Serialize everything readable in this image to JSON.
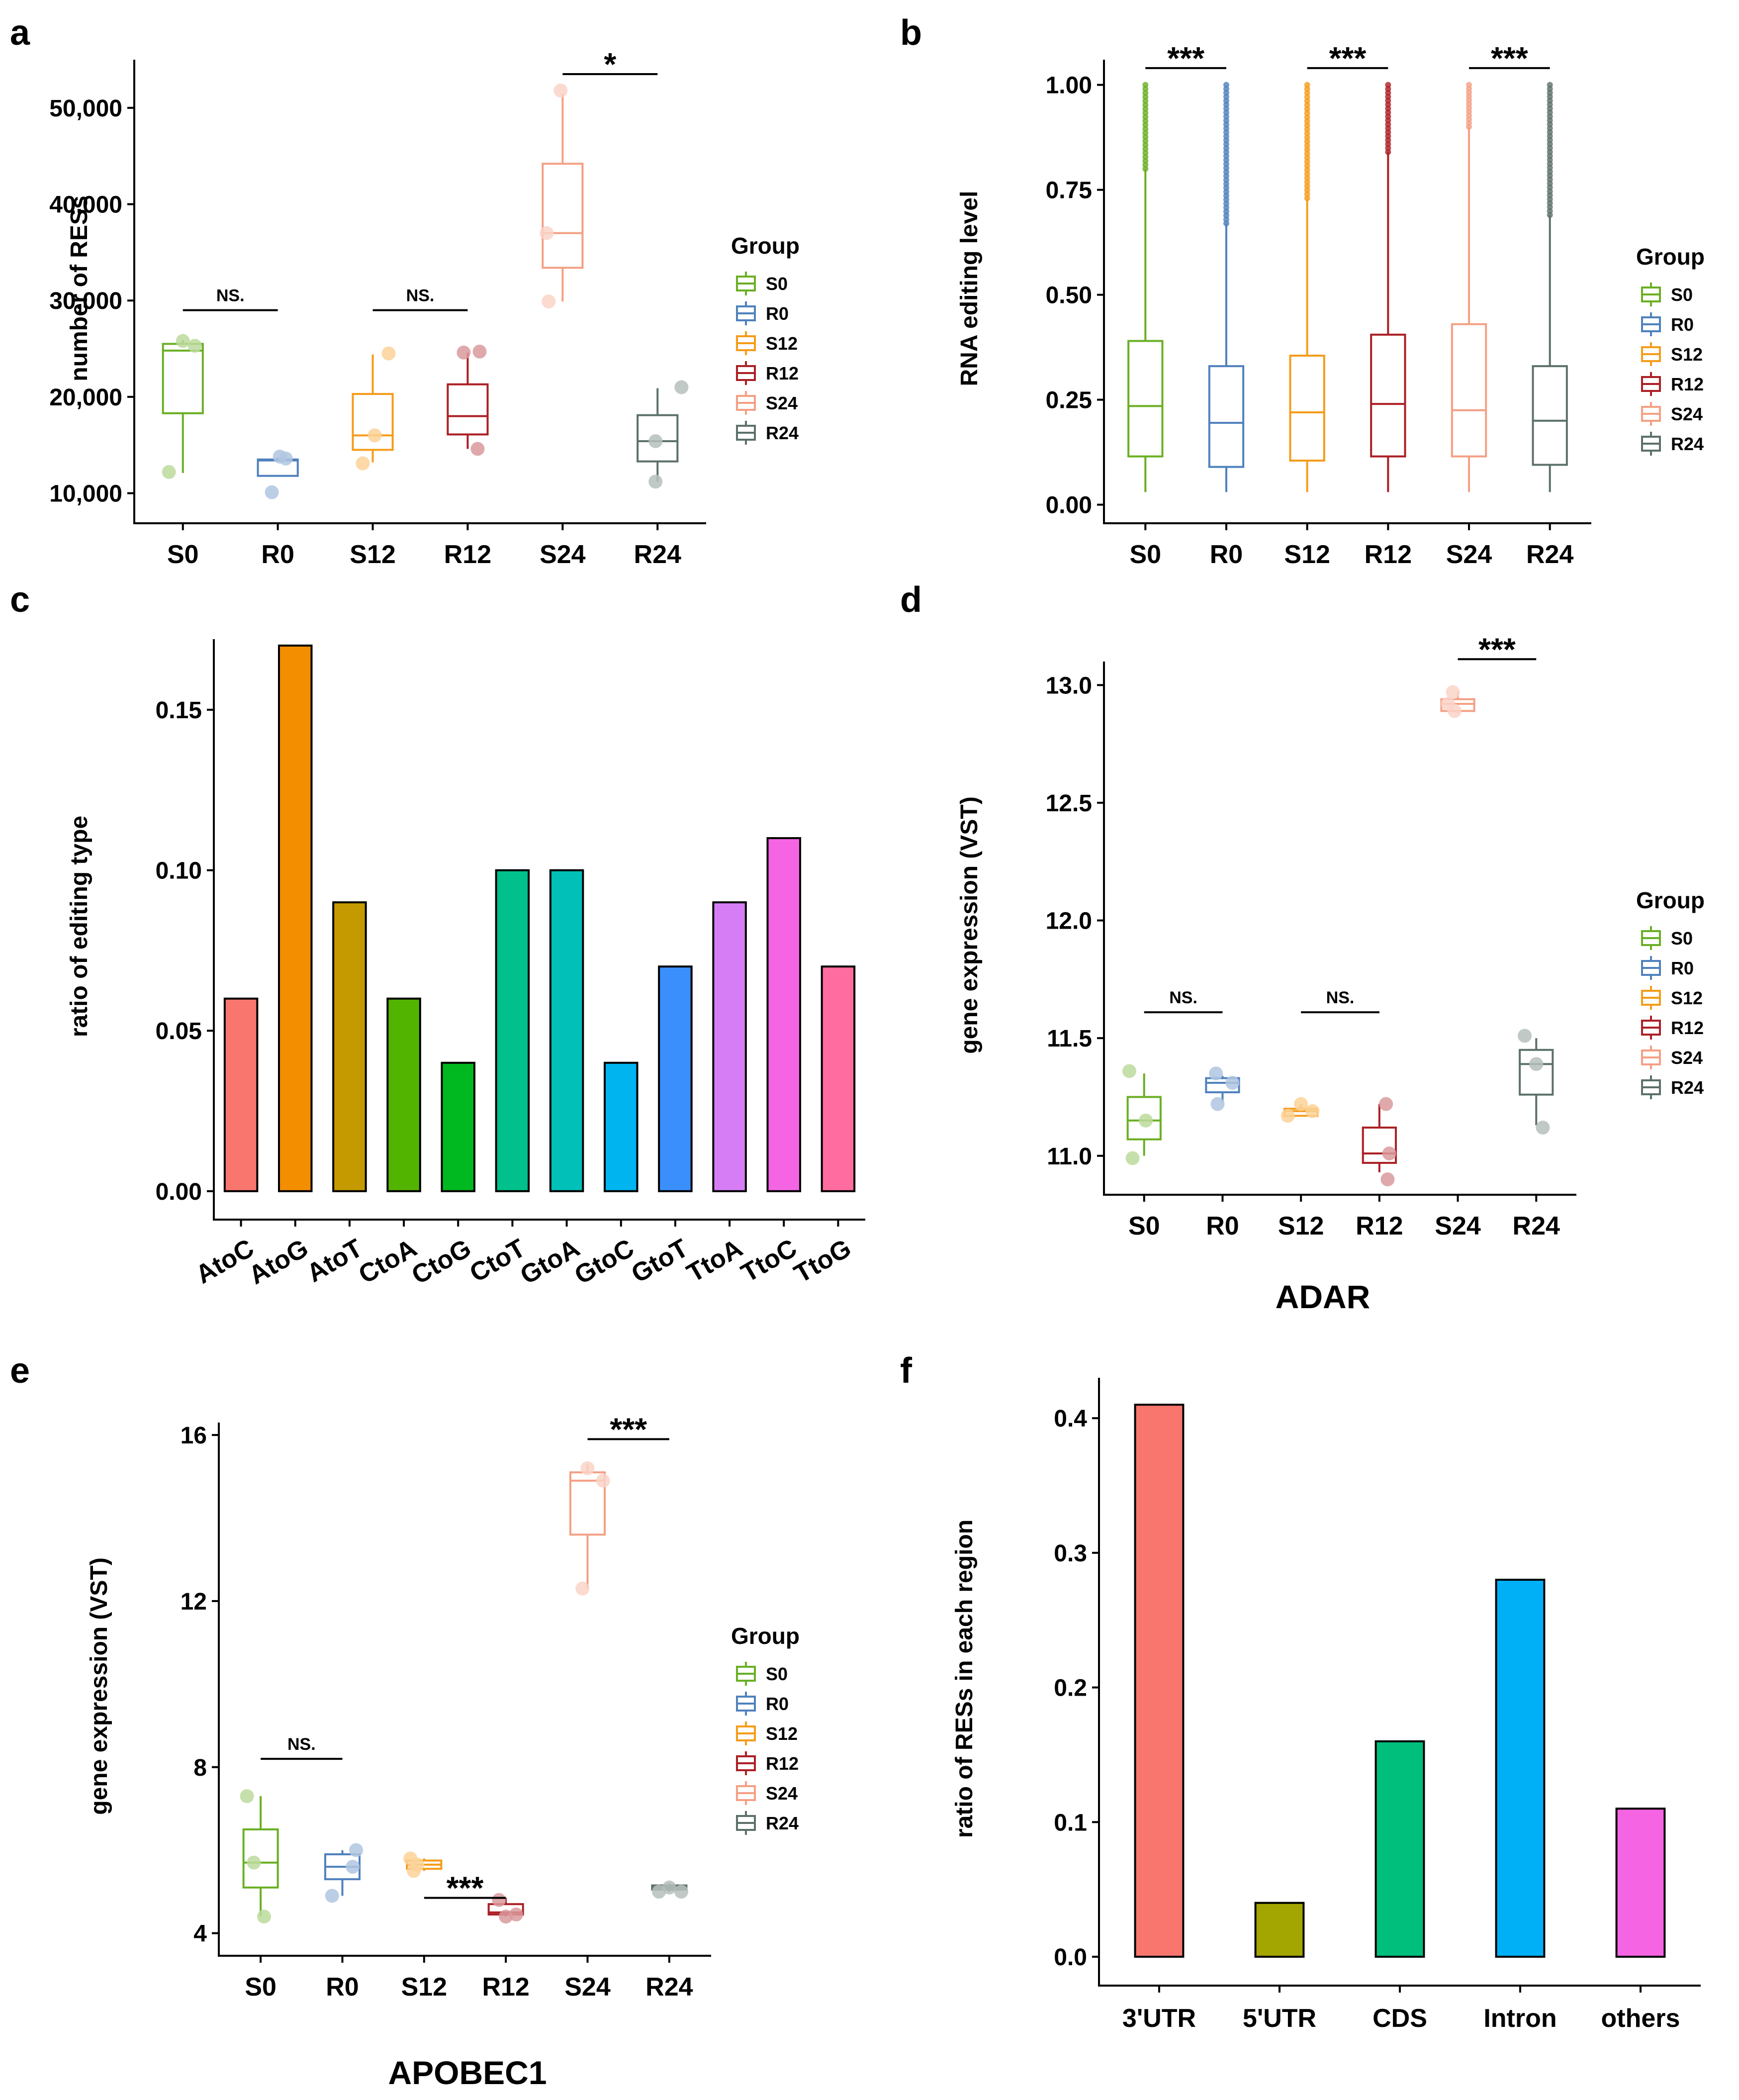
{
  "colors": {
    "S0": "#6aaf23",
    "R0": "#4f81bd",
    "S12": "#f59c1a",
    "R12": "#ab1f25",
    "S24": "#f4a084",
    "R24": "#5c706b"
  },
  "legend": {
    "title": "Group",
    "items": [
      "S0",
      "R0",
      "S12",
      "R12",
      "S24",
      "R24"
    ]
  },
  "chart_data": [
    {
      "id": "a",
      "panel": "a",
      "type": "box",
      "ylabel": "number of RESs",
      "categories": [
        "S0",
        "R0",
        "S12",
        "R12",
        "S24",
        "R24"
      ],
      "ylim": [
        7500,
        55000
      ],
      "yticks": [
        10000,
        20000,
        30000,
        40000,
        50000
      ],
      "ytick_labels": [
        "10,000",
        "20,000",
        "30,000",
        "40,000",
        "50,000"
      ],
      "boxes": [
        {
          "group": "S0",
          "min": 12100,
          "q1": 18300,
          "median": 24800,
          "q3": 25500,
          "max": 25900
        },
        {
          "group": "R0",
          "min": 11800,
          "q1": 11800,
          "median": 13400,
          "q3": 13500,
          "max": 13700
        },
        {
          "group": "S12",
          "min": 13200,
          "q1": 14500,
          "median": 16000,
          "q3": 20300,
          "max": 24400
        },
        {
          "group": "R12",
          "min": 14600,
          "q1": 16100,
          "median": 18000,
          "q3": 21300,
          "max": 24600
        },
        {
          "group": "S24",
          "min": 29900,
          "q1": 33400,
          "median": 37000,
          "q3": 44200,
          "max": 51500
        },
        {
          "group": "R24",
          "min": 11200,
          "q1": 13300,
          "median": 15400,
          "q3": 18100,
          "max": 20900
        }
      ],
      "points": [
        {
          "group": "S0",
          "values": [
            12200,
            25800,
            25300
          ],
          "offsets": [
            -0.35,
            0.0,
            0.3
          ]
        },
        {
          "group": "R0",
          "values": [
            10100,
            13600,
            13800
          ],
          "offsets": [
            -0.15,
            0.2,
            0.05
          ]
        },
        {
          "group": "S12",
          "values": [
            13100,
            16000,
            24500
          ],
          "offsets": [
            -0.25,
            0.05,
            0.4
          ]
        },
        {
          "group": "R12",
          "values": [
            14600,
            24600,
            24700
          ],
          "offsets": [
            0.25,
            -0.1,
            0.3
          ]
        },
        {
          "group": "S24",
          "values": [
            29900,
            37000,
            51800
          ],
          "offsets": [
            -0.35,
            -0.4,
            -0.05
          ]
        },
        {
          "group": "R24",
          "values": [
            11200,
            15400,
            21000
          ],
          "offsets": [
            -0.05,
            -0.05,
            0.6
          ]
        }
      ],
      "significance": [
        {
          "from": "S0",
          "to": "R0",
          "label": "NS.",
          "y": 29000
        },
        {
          "from": "S12",
          "to": "R12",
          "label": "NS.",
          "y": 29000
        },
        {
          "from": "S24",
          "to": "R24",
          "label": "*",
          "y": 53500
        }
      ]
    },
    {
      "id": "b",
      "panel": "b",
      "type": "box",
      "ylabel": "RNA editing level",
      "categories": [
        "S0",
        "R0",
        "S12",
        "R12",
        "S24",
        "R24"
      ],
      "ylim": [
        -0.03,
        1.06
      ],
      "yticks": [
        0.0,
        0.25,
        0.5,
        0.75,
        1.0
      ],
      "ytick_labels": [
        "0.00",
        "0.25",
        "0.50",
        "0.75",
        "1.00"
      ],
      "boxes": [
        {
          "group": "S0",
          "min": 0.03,
          "q1": 0.115,
          "median": 0.235,
          "q3": 0.39,
          "max": 0.8
        },
        {
          "group": "R0",
          "min": 0.03,
          "q1": 0.09,
          "median": 0.195,
          "q3": 0.33,
          "max": 0.67
        },
        {
          "group": "S12",
          "min": 0.03,
          "q1": 0.105,
          "median": 0.22,
          "q3": 0.355,
          "max": 0.73
        },
        {
          "group": "R12",
          "min": 0.03,
          "q1": 0.115,
          "median": 0.24,
          "q3": 0.405,
          "max": 0.84
        },
        {
          "group": "S24",
          "min": 0.03,
          "q1": 0.115,
          "median": 0.225,
          "q3": 0.43,
          "max": 0.9
        },
        {
          "group": "R24",
          "min": 0.03,
          "q1": 0.095,
          "median": 0.2,
          "q3": 0.33,
          "max": 0.69
        }
      ],
      "outlier_ranges": [
        {
          "group": "S0",
          "from": 0.8,
          "to": 1.0
        },
        {
          "group": "R0",
          "from": 0.67,
          "to": 1.0
        },
        {
          "group": "S12",
          "from": 0.73,
          "to": 1.0
        },
        {
          "group": "R12",
          "from": 0.84,
          "to": 1.0
        },
        {
          "group": "S24",
          "from": 0.9,
          "to": 1.0
        },
        {
          "group": "R24",
          "from": 0.69,
          "to": 1.0
        }
      ],
      "significance": [
        {
          "from": "S0",
          "to": "R0",
          "label": "***",
          "y": 1.04
        },
        {
          "from": "S12",
          "to": "R12",
          "label": "***",
          "y": 1.04
        },
        {
          "from": "S24",
          "to": "R24",
          "label": "***",
          "y": 1.04
        }
      ]
    },
    {
      "id": "c",
      "panel": "c",
      "type": "bar",
      "ylabel": "ratio of editing type",
      "categories": [
        "AtoC",
        "AtoG",
        "AtoT",
        "CtoA",
        "CtoG",
        "CtoT",
        "GtoA",
        "GtoC",
        "GtoT",
        "TtoA",
        "TtoC",
        "TtoG"
      ],
      "values": [
        0.06,
        0.17,
        0.09,
        0.06,
        0.04,
        0.1,
        0.1,
        0.04,
        0.07,
        0.09,
        0.11,
        0.07
      ],
      "bar_colors": [
        "#f8766d",
        "#f28e00",
        "#c49a00",
        "#53b400",
        "#00b81f",
        "#00c08b",
        "#00c0b8",
        "#00b4ef",
        "#3a8ffc",
        "#d67df5",
        "#f564e3",
        "#ff6c9f"
      ],
      "ylim": [
        -0.007,
        0.172
      ],
      "yticks": [
        0.0,
        0.05,
        0.1,
        0.15
      ],
      "ytick_labels": [
        "0.00",
        "0.05",
        "0.10",
        "0.15"
      ]
    },
    {
      "id": "d",
      "panel": "d",
      "type": "box",
      "ylabel": "gene expression (VST)",
      "xlabel": "ADAR",
      "categories": [
        "S0",
        "R0",
        "S12",
        "R12",
        "S24",
        "R24"
      ],
      "ylim": [
        10.86,
        13.1
      ],
      "yticks": [
        11.0,
        11.5,
        12.0,
        12.5,
        13.0
      ],
      "ytick_labels": [
        "11.0",
        "11.5",
        "12.0",
        "12.5",
        "13.0"
      ],
      "boxes": [
        {
          "group": "S0",
          "min": 11.0,
          "q1": 11.07,
          "median": 11.15,
          "q3": 11.25,
          "max": 11.35
        },
        {
          "group": "R0",
          "min": 11.23,
          "q1": 11.27,
          "median": 11.31,
          "q3": 11.33,
          "max": 11.34
        },
        {
          "group": "S12",
          "min": 11.17,
          "q1": 11.17,
          "median": 11.19,
          "q3": 11.2,
          "max": 11.22
        },
        {
          "group": "R12",
          "min": 10.93,
          "q1": 10.97,
          "median": 11.01,
          "q3": 11.12,
          "max": 11.22
        },
        {
          "group": "S24",
          "min": 12.88,
          "q1": 12.89,
          "median": 12.92,
          "q3": 12.94,
          "max": 12.97
        },
        {
          "group": "R24",
          "min": 11.13,
          "q1": 11.26,
          "median": 11.39,
          "q3": 11.45,
          "max": 11.5
        }
      ],
      "points": [
        {
          "group": "S0",
          "values": [
            10.99,
            11.15,
            11.36
          ],
          "offsets": [
            -0.35,
            0.05,
            -0.45
          ]
        },
        {
          "group": "R0",
          "values": [
            11.22,
            11.31,
            11.35
          ],
          "offsets": [
            -0.15,
            0.3,
            -0.2
          ]
        },
        {
          "group": "S12",
          "values": [
            11.17,
            11.19,
            11.22
          ],
          "offsets": [
            -0.4,
            0.35,
            0.0
          ]
        },
        {
          "group": "R12",
          "values": [
            10.9,
            11.01,
            11.22
          ],
          "offsets": [
            0.25,
            0.3,
            0.2
          ]
        },
        {
          "group": "S24",
          "values": [
            12.89,
            12.92,
            12.97
          ],
          "offsets": [
            -0.1,
            -0.3,
            -0.15
          ]
        },
        {
          "group": "R24",
          "values": [
            11.12,
            11.39,
            11.51
          ],
          "offsets": [
            0.2,
            0.0,
            -0.35
          ]
        }
      ],
      "significance": [
        {
          "from": "S0",
          "to": "R0",
          "label": "NS.",
          "y": 11.61
        },
        {
          "from": "S12",
          "to": "R12",
          "label": "NS.",
          "y": 11.61
        },
        {
          "from": "S24",
          "to": "R24",
          "label": "***",
          "y": 13.11
        }
      ]
    },
    {
      "id": "e",
      "panel": "e",
      "type": "box",
      "ylabel": "gene expression (VST)",
      "xlabel": "APOBEC1",
      "categories": [
        "S0",
        "R0",
        "S12",
        "R12",
        "S24",
        "R24"
      ],
      "ylim": [
        3.6,
        16.3
      ],
      "yticks": [
        4,
        8,
        12,
        16
      ],
      "ytick_labels": [
        "4",
        "8",
        "12",
        "16"
      ],
      "boxes": [
        {
          "group": "S0",
          "min": 4.4,
          "q1": 5.1,
          "median": 5.7,
          "q3": 6.5,
          "max": 7.3
        },
        {
          "group": "R0",
          "min": 4.9,
          "q1": 5.3,
          "median": 5.6,
          "q3": 5.9,
          "max": 6.0
        },
        {
          "group": "S12",
          "min": 5.5,
          "q1": 5.55,
          "median": 5.65,
          "q3": 5.75,
          "max": 5.8
        },
        {
          "group": "R12",
          "min": 4.4,
          "q1": 4.45,
          "median": 4.5,
          "q3": 4.7,
          "max": 4.85
        },
        {
          "group": "S24",
          "min": 12.3,
          "q1": 13.6,
          "median": 14.9,
          "q3": 15.1,
          "max": 15.3
        },
        {
          "group": "R24",
          "min": 5.0,
          "q1": 5.05,
          "median": 5.1,
          "q3": 5.15,
          "max": 5.2
        }
      ],
      "points": [
        {
          "group": "S0",
          "values": [
            4.4,
            5.7,
            7.3
          ],
          "offsets": [
            0.1,
            -0.2,
            -0.4
          ]
        },
        {
          "group": "R0",
          "values": [
            4.9,
            5.6,
            6.0
          ],
          "offsets": [
            -0.3,
            0.3,
            0.4
          ]
        },
        {
          "group": "S12",
          "values": [
            5.5,
            5.65,
            5.8
          ],
          "offsets": [
            -0.3,
            -0.2,
            -0.4
          ]
        },
        {
          "group": "R12",
          "values": [
            4.4,
            4.45,
            4.8
          ],
          "offsets": [
            0.0,
            0.3,
            -0.2
          ]
        },
        {
          "group": "S24",
          "values": [
            12.3,
            14.9,
            15.2
          ],
          "offsets": [
            -0.15,
            0.45,
            0.0
          ]
        },
        {
          "group": "R24",
          "values": [
            5.0,
            5.1,
            5.0
          ],
          "offsets": [
            -0.3,
            0.0,
            0.35
          ]
        }
      ],
      "significance": [
        {
          "from": "S0",
          "to": "R0",
          "label": "NS.",
          "y": 8.2
        },
        {
          "from": "S12",
          "to": "R12",
          "label": "***",
          "y": 4.85
        },
        {
          "from": "S24",
          "to": "R24",
          "label": "***",
          "y": 15.9
        }
      ]
    },
    {
      "id": "f",
      "panel": "f",
      "type": "bar",
      "ylabel": "ratio of RESs in each region",
      "categories": [
        "3'UTR",
        "5'UTR",
        "CDS",
        "Intron",
        "others"
      ],
      "values": [
        0.41,
        0.04,
        0.16,
        0.28,
        0.11
      ],
      "bar_colors": [
        "#f8766d",
        "#a3a500",
        "#00bf7d",
        "#00b0f6",
        "#f564e3"
      ],
      "ylim": [
        -0.017,
        0.43
      ],
      "yticks": [
        0.0,
        0.1,
        0.2,
        0.3,
        0.4
      ],
      "ytick_labels": [
        "0.0",
        "0.1",
        "0.2",
        "0.3",
        "0.4"
      ]
    }
  ]
}
